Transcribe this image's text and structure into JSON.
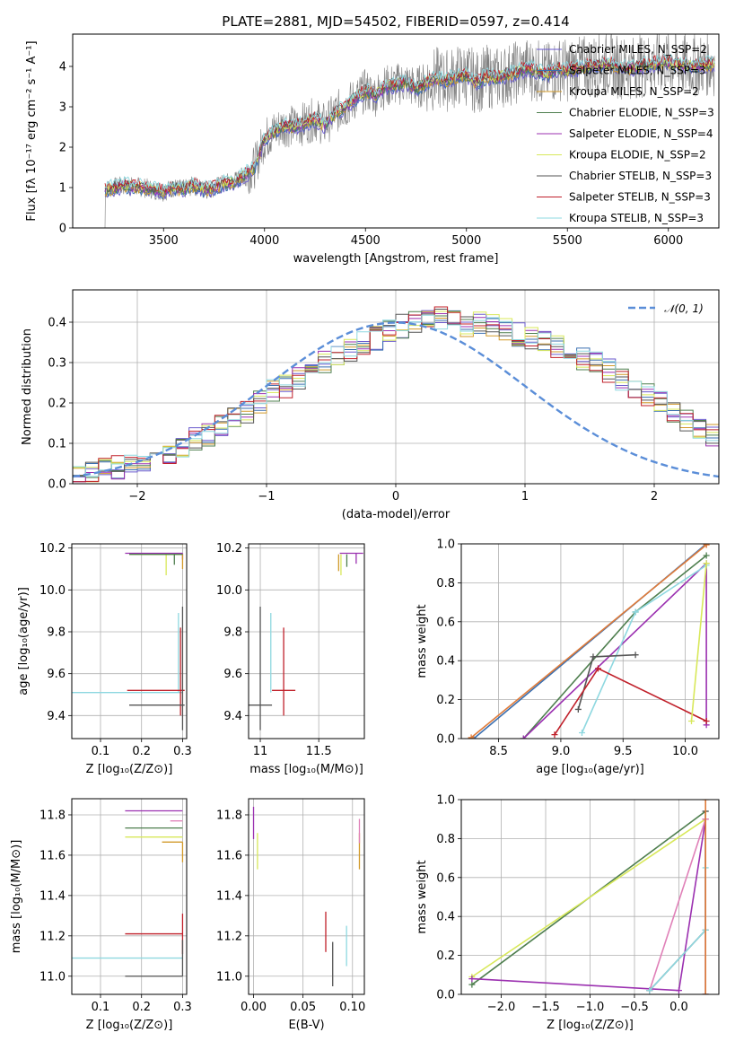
{
  "figure": {
    "title": "PLATE=2881, MJD=54502, FIBERID=0597, z=0.414"
  },
  "colors": {
    "chabrier_miles": "#6a5acd",
    "salpeter_miles": "#3a6fb0",
    "kroupa_miles": "#d29a2a",
    "chabrier_elodie": "#4f7f4f",
    "salpeter_elodie": "#9b30b0",
    "kroupa_elodie": "#d8e85a",
    "chabrier_stelib": "#555555",
    "salpeter_stelib": "#c0202a",
    "kroupa_stelib": "#8ed8e0",
    "orange": "#e07b39",
    "pink": "#e080b8",
    "normal_curve": "#5b8ed8",
    "grid": "#b0b0b0"
  },
  "chart_data": [
    {
      "id": "spectrum",
      "type": "line",
      "title": "PLATE=2881, MJD=54502, FIBERID=0597, z=0.414",
      "xlabel": "wavelength [Angstrom, rest frame]",
      "ylabel": "Flux [fλ 10⁻¹⁷ erg cm⁻² s⁻¹ A⁻¹]",
      "xlim": [
        3050,
        6250
      ],
      "ylim": [
        0,
        4.8
      ],
      "xticks": [
        3500,
        4000,
        4500,
        5000,
        5500,
        6000
      ],
      "yticks": [
        0,
        1,
        2,
        3,
        4
      ],
      "grid": false,
      "legend": "upper-right",
      "continuum": {
        "x": [
          3210,
          3300,
          3400,
          3500,
          3550,
          3600,
          3650,
          3700,
          3750,
          3800,
          3850,
          3900,
          3950,
          4000,
          4050,
          4100,
          4150,
          4200,
          4250,
          4300,
          4350,
          4400,
          4450,
          4500,
          4550,
          4600,
          4650,
          4700,
          4750,
          4800,
          4850,
          4900,
          4950,
          5000,
          5050,
          5100,
          5150,
          5200,
          5250,
          5300,
          5350,
          5400,
          5450,
          5500,
          5600,
          5700,
          5800,
          5900,
          6000,
          6100,
          6200
        ],
        "y": [
          0.95,
          1.05,
          1.0,
          0.9,
          1.0,
          0.95,
          1.05,
          0.95,
          1.0,
          1.1,
          1.15,
          1.3,
          1.5,
          2.2,
          2.4,
          2.55,
          2.5,
          2.6,
          2.7,
          2.55,
          2.85,
          3.0,
          3.2,
          3.4,
          3.3,
          3.5,
          3.55,
          3.6,
          3.45,
          3.6,
          3.7,
          3.65,
          3.75,
          3.8,
          3.6,
          3.75,
          3.7,
          3.8,
          3.85,
          3.95,
          3.9,
          3.8,
          3.95,
          3.9,
          4.0,
          4.05,
          3.95,
          4.05,
          4.1,
          4.0,
          4.05
        ]
      },
      "series": [
        {
          "name": "Chabrier MILES, N_SSP=2",
          "color": "#6a5acd"
        },
        {
          "name": "Salpeter MILES, N_SSP=3",
          "color": "#3a6fb0"
        },
        {
          "name": "Kroupa MILES, N_SSP=2",
          "color": "#d29a2a"
        },
        {
          "name": "Chabrier ELODIE, N_SSP=3",
          "color": "#4f7f4f"
        },
        {
          "name": "Salpeter ELODIE, N_SSP=4",
          "color": "#9b30b0"
        },
        {
          "name": "Kroupa ELODIE, N_SSP=2",
          "color": "#d8e85a"
        },
        {
          "name": "Chabrier STELIB, N_SSP=3",
          "color": "#555555"
        },
        {
          "name": "Salpeter STELIB, N_SSP=3",
          "color": "#c0202a"
        },
        {
          "name": "Kroupa STELIB, N_SSP=3",
          "color": "#8ed8e0"
        }
      ]
    },
    {
      "id": "residuals",
      "type": "bar",
      "xlabel": "(data-model)/error",
      "ylabel": "Normed distribution",
      "xlim": [
        -2.5,
        2.5
      ],
      "ylim": [
        0,
        0.48
      ],
      "xticks": [
        -2,
        -1,
        0,
        1,
        2
      ],
      "yticks": [
        0.0,
        0.1,
        0.2,
        0.3,
        0.4
      ],
      "grid": true,
      "legend": "upper-right",
      "legend_label": "𝒩(0, 1)",
      "bin_width": 0.1,
      "bin_start": -2.5,
      "reference_hist": [
        0.02,
        0.03,
        0.04,
        0.04,
        0.05,
        0.06,
        0.06,
        0.07,
        0.09,
        0.11,
        0.12,
        0.14,
        0.16,
        0.18,
        0.2,
        0.23,
        0.24,
        0.26,
        0.28,
        0.3,
        0.32,
        0.33,
        0.35,
        0.36,
        0.38,
        0.39,
        0.4,
        0.4,
        0.41,
        0.4,
        0.39,
        0.4,
        0.39,
        0.38,
        0.37,
        0.36,
        0.35,
        0.34,
        0.33,
        0.31,
        0.3,
        0.28,
        0.26,
        0.24,
        0.22,
        0.2,
        0.18,
        0.16,
        0.14,
        0.12,
        0.1
      ]
    },
    {
      "id": "age-vs-Z",
      "type": "scatter",
      "xlabel": "Z [log₁₀(Z/Z⊙)]",
      "ylabel": "age  [log₁₀(age/yr)]",
      "xlim": [
        0.03,
        0.31
      ],
      "ylim": [
        9.29,
        10.22
      ],
      "xticks": [
        0.1,
        0.2,
        0.3
      ],
      "yticks": [
        9.4,
        9.6,
        9.8,
        10.0,
        10.2
      ],
      "grid": true,
      "errorbars": [
        {
          "color": "#8ed8e0",
          "x": 0.29,
          "y": 9.51,
          "xerr": [
            0.26,
            0.01
          ],
          "yerr": [
            0.0,
            0.38
          ]
        },
        {
          "color": "#c0202a",
          "x": 0.295,
          "y": 9.52,
          "xerr": [
            0.13,
            0.01
          ],
          "yerr": [
            0.12,
            0.3
          ]
        },
        {
          "color": "#555555",
          "x": 0.3,
          "y": 9.45,
          "xerr": [
            0.13,
            0.005
          ],
          "yerr": [
            0.12,
            0.47
          ]
        },
        {
          "color": "#9b30b0",
          "x": 0.3,
          "y": 10.175,
          "xerr": [
            0.14,
            0.0
          ],
          "yerr": [
            0.03,
            0.0
          ]
        },
        {
          "color": "#d29a2a",
          "x": 0.3,
          "y": 10.17,
          "xerr": [
            0.1,
            0.0
          ],
          "yerr": [
            0.07,
            0.0
          ]
        },
        {
          "color": "#d8e85a",
          "x": 0.26,
          "y": 10.17,
          "xerr": [
            0.09,
            0.04
          ],
          "yerr": [
            0.1,
            0.0
          ]
        },
        {
          "color": "#4f7f4f",
          "x": 0.28,
          "y": 10.17,
          "xerr": [
            0.11,
            0.02
          ],
          "yerr": [
            0.05,
            0.0
          ]
        }
      ]
    },
    {
      "id": "age-vs-mass",
      "type": "scatter",
      "xlabel": "mass [log₁₀(M/M⊙)]",
      "ylabel": "",
      "xlim": [
        10.9,
        11.89
      ],
      "ylim": [
        9.29,
        10.22
      ],
      "xticks": [
        11.0,
        11.5
      ],
      "yticks": [
        9.4,
        9.6,
        9.8,
        10.0,
        10.2
      ],
      "grid": true,
      "errorbars": [
        {
          "color": "#555555",
          "x": 11.0,
          "y": 9.45,
          "xerr": [
            0.1,
            0.1
          ],
          "yerr": [
            0.12,
            0.47
          ]
        },
        {
          "color": "#8ed8e0",
          "x": 11.09,
          "y": 9.51,
          "xerr": [
            0.0,
            0.0
          ],
          "yerr": [
            0.0,
            0.38
          ]
        },
        {
          "color": "#c0202a",
          "x": 11.2,
          "y": 9.52,
          "xerr": [
            0.1,
            0.1
          ],
          "yerr": [
            0.12,
            0.3
          ]
        },
        {
          "color": "#9b30b0",
          "x": 11.82,
          "y": 10.175,
          "xerr": [
            0.14,
            0.06
          ],
          "yerr": [
            0.05,
            0.0
          ]
        },
        {
          "color": "#d8e85a",
          "x": 11.69,
          "y": 10.17,
          "xerr": [
            0.0,
            0.0
          ],
          "yerr": [
            0.1,
            0.0
          ]
        },
        {
          "color": "#4f7f4f",
          "x": 11.74,
          "y": 10.17,
          "xerr": [
            0.0,
            0.0
          ],
          "yerr": [
            0.06,
            0.0
          ]
        },
        {
          "color": "#d29a2a",
          "x": 11.67,
          "y": 10.17,
          "xerr": [
            0.0,
            0.0
          ],
          "yerr": [
            0.08,
            0.0
          ]
        }
      ]
    },
    {
      "id": "weight-vs-age",
      "type": "line",
      "xlabel": "age  [log₁₀(age/yr)]",
      "ylabel": "mass weight",
      "xlim": [
        8.2,
        10.27
      ],
      "ylim": [
        0,
        1
      ],
      "xticks": [
        8.5,
        9.0,
        9.5,
        10.0
      ],
      "yticks": [
        0.0,
        0.2,
        0.4,
        0.6,
        0.8,
        1.0
      ],
      "grid": true,
      "series": [
        {
          "name": "",
          "color": "#3a6fb0",
          "x": [
            8.3,
            10.17
          ],
          "y": [
            0.0,
            1.0
          ]
        },
        {
          "name": "",
          "color": "#e07b39",
          "x": [
            8.28,
            10.17
          ],
          "y": [
            0.005,
            0.995
          ]
        },
        {
          "name": "",
          "color": "#4f7f4f",
          "x": [
            8.7,
            9.6,
            10.17
          ],
          "y": [
            0.0,
            0.65,
            0.94
          ]
        },
        {
          "name": "",
          "color": "#9b30b0",
          "x": [
            8.7,
            10.17,
            10.17
          ],
          "y": [
            0.0,
            0.9,
            0.07
          ]
        },
        {
          "name": "",
          "color": "#8ed8e0",
          "x": [
            9.17,
            9.6,
            10.17
          ],
          "y": [
            0.03,
            0.65,
            0.89
          ]
        },
        {
          "name": "",
          "color": "#555555",
          "x": [
            9.14,
            9.26,
            9.6
          ],
          "y": [
            0.15,
            0.42,
            0.43
          ]
        },
        {
          "name": "",
          "color": "#c0202a",
          "x": [
            8.95,
            9.3,
            10.17
          ],
          "y": [
            0.02,
            0.36,
            0.09
          ]
        },
        {
          "name": "",
          "color": "#d8e85a",
          "x": [
            10.05,
            10.17
          ],
          "y": [
            0.09,
            0.9
          ]
        }
      ]
    },
    {
      "id": "mass-vs-Z",
      "type": "scatter",
      "xlabel": "Z [log₁₀(Z/Z⊙)]",
      "ylabel": "mass [log₁₀(M/M⊙)]",
      "xlim": [
        0.03,
        0.31
      ],
      "ylim": [
        10.91,
        11.88
      ],
      "xticks": [
        0.1,
        0.2,
        0.3
      ],
      "yticks": [
        11.0,
        11.2,
        11.4,
        11.6,
        11.8
      ],
      "grid": true,
      "errorbars": [
        {
          "color": "#9b30b0",
          "x": 0.3,
          "y": 11.82,
          "xerr": [
            0.14,
            0.0
          ],
          "yerr": [
            0.0,
            0.0
          ]
        },
        {
          "color": "#e080b8",
          "x": 0.3,
          "y": 11.77,
          "xerr": [
            0.03,
            0.0
          ],
          "yerr": [
            0.0,
            0.0
          ]
        },
        {
          "color": "#4f7f4f",
          "x": 0.3,
          "y": 11.735,
          "xerr": [
            0.14,
            0.0
          ],
          "yerr": [
            0.0,
            0.0
          ]
        },
        {
          "color": "#d8e85a",
          "x": 0.3,
          "y": 11.69,
          "xerr": [
            0.14,
            0.0
          ],
          "yerr": [
            0.0,
            0.0
          ]
        },
        {
          "color": "#d29a2a",
          "x": 0.3,
          "y": 11.665,
          "xerr": [
            0.05,
            0.0
          ],
          "yerr": [
            0.1,
            0.0
          ]
        },
        {
          "color": "#c0202a",
          "x": 0.3,
          "y": 11.21,
          "xerr": [
            0.14,
            0.0
          ],
          "yerr": [
            0.1,
            0.1
          ]
        },
        {
          "color": "#8ed8e0",
          "x": 0.3,
          "y": 11.09,
          "xerr": [
            0.27,
            0.0
          ],
          "yerr": [
            0.0,
            0.0
          ]
        },
        {
          "color": "#555555",
          "x": 0.3,
          "y": 11.0,
          "xerr": [
            0.14,
            0.0
          ],
          "yerr": [
            0.0,
            0.18
          ]
        }
      ]
    },
    {
      "id": "mass-vs-ebv",
      "type": "scatter",
      "xlabel": "E(B-V)",
      "ylabel": "",
      "xlim": [
        -0.005,
        0.112
      ],
      "ylim": [
        10.91,
        11.88
      ],
      "xticks": [
        0.0,
        0.05,
        0.1
      ],
      "yticks": [
        11.0,
        11.2,
        11.4,
        11.6,
        11.8
      ],
      "grid": true,
      "errorbars": [
        {
          "color": "#9b30b0",
          "x": 0.0,
          "y": 11.76,
          "xerr": [
            0.0,
            0.0
          ],
          "yerr": [
            0.08,
            0.08
          ]
        },
        {
          "color": "#d8e85a",
          "x": 0.004,
          "y": 11.63,
          "xerr": [
            0.0,
            0.0
          ],
          "yerr": [
            0.1,
            0.08
          ]
        },
        {
          "color": "#c0202a",
          "x": 0.073,
          "y": 11.22,
          "xerr": [
            0.0,
            0.0
          ],
          "yerr": [
            0.1,
            0.1
          ]
        },
        {
          "color": "#555555",
          "x": 0.08,
          "y": 11.07,
          "xerr": [
            0.0,
            0.0
          ],
          "yerr": [
            0.12,
            0.1
          ]
        },
        {
          "color": "#8ed8e0",
          "x": 0.094,
          "y": 11.15,
          "xerr": [
            0.0,
            0.0
          ],
          "yerr": [
            0.1,
            0.1
          ]
        },
        {
          "color": "#d29a2a",
          "x": 0.107,
          "y": 11.63,
          "xerr": [
            0.0,
            0.0
          ],
          "yerr": [
            0.1,
            0.08
          ]
        },
        {
          "color": "#e080b8",
          "x": 0.107,
          "y": 11.72,
          "xerr": [
            0.0,
            0.0
          ],
          "yerr": [
            0.06,
            0.06
          ]
        }
      ]
    },
    {
      "id": "weight-vs-Z",
      "type": "line",
      "xlabel": "Z [log₁₀(Z/Z⊙)]",
      "ylabel": "mass weight",
      "xlim": [
        -2.45,
        0.45
      ],
      "ylim": [
        0,
        1
      ],
      "xticks": [
        -2.0,
        -1.5,
        -1.0,
        -0.5,
        0.0
      ],
      "yticks": [
        0.0,
        0.2,
        0.4,
        0.6,
        0.8,
        1.0
      ],
      "grid": true,
      "series": [
        {
          "name": "",
          "color": "#4f7f4f",
          "x": [
            -2.33,
            0.3,
            0.3
          ],
          "y": [
            0.05,
            0.94,
            0.0
          ]
        },
        {
          "name": "",
          "color": "#d8e85a",
          "x": [
            -2.33,
            0.3
          ],
          "y": [
            0.09,
            0.9
          ]
        },
        {
          "name": "",
          "color": "#9b30b0",
          "x": [
            -2.33,
            0.0,
            0.3,
            0.3
          ],
          "y": [
            0.08,
            0.02,
            0.9,
            0.0
          ]
        },
        {
          "name": "",
          "color": "#e080b8",
          "x": [
            -0.33,
            0.3
          ],
          "y": [
            0.02,
            0.9
          ]
        },
        {
          "name": "",
          "color": "#555555",
          "x": [
            -0.33,
            0.3,
            0.3
          ],
          "y": [
            0.02,
            0.33,
            0.94
          ]
        },
        {
          "name": "",
          "color": "#8ed8e0",
          "x": [
            -0.33,
            0.3,
            0.3
          ],
          "y": [
            0.02,
            0.33,
            0.65
          ]
        },
        {
          "name": "",
          "color": "#e07b39",
          "x": [
            0.3,
            0.3
          ],
          "y": [
            0.0,
            1.0
          ]
        }
      ]
    }
  ]
}
